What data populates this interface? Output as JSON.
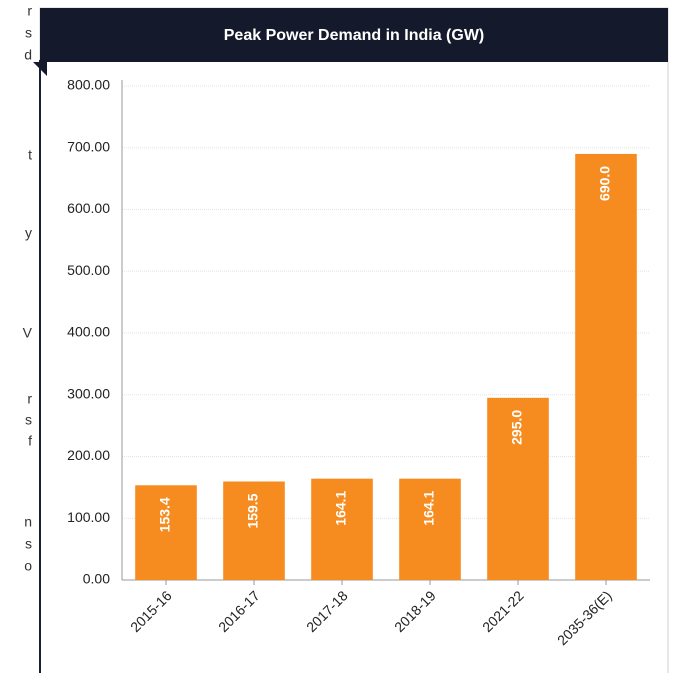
{
  "side_text": [
    "r",
    "s",
    "d",
    "t",
    "y",
    "V",
    "r",
    "s",
    "f",
    "n",
    "s",
    "o"
  ],
  "chart_data": {
    "type": "bar",
    "title": "Peak Power Demand in India (GW)",
    "categories": [
      "2015-16",
      "2016-17",
      "2017-18",
      "2018-19",
      "2021-22",
      "2035-36(E)"
    ],
    "values": [
      153.4,
      159.5,
      164.1,
      164.1,
      295,
      690
    ],
    "value_labels": [
      "153.4",
      "159.5",
      "164.1",
      "164.1",
      "295.0",
      "690.0"
    ],
    "color": "#f68b1f",
    "ylim": [
      0,
      800
    ],
    "yticks": [
      {
        "value": 0,
        "label": "0.00"
      },
      {
        "value": 100,
        "label": "100.00"
      },
      {
        "value": 200,
        "label": "200.00"
      },
      {
        "value": 300,
        "label": "300.00"
      },
      {
        "value": 400,
        "label": "400.00"
      },
      {
        "value": 500,
        "label": "500.00"
      },
      {
        "value": 600,
        "label": "600.00"
      },
      {
        "value": 700,
        "label": "700.00"
      },
      {
        "value": 800,
        "label": "800.00"
      }
    ],
    "grid": true
  }
}
